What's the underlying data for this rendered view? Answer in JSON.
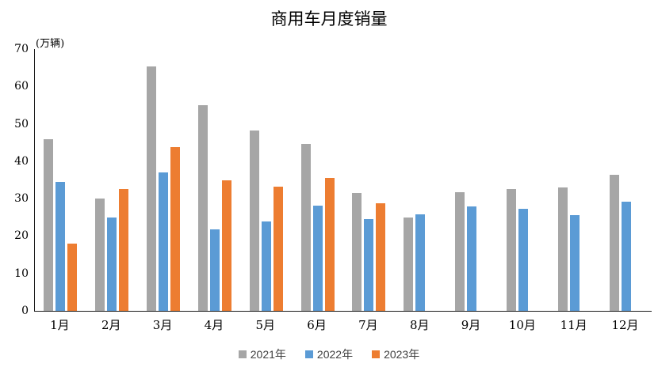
{
  "chart_data": {
    "type": "bar",
    "title": "商用车月度销量",
    "unit_label": "(万辆)",
    "categories": [
      "1月",
      "2月",
      "3月",
      "4月",
      "5月",
      "6月",
      "7月",
      "8月",
      "9月",
      "10月",
      "11月",
      "12月"
    ],
    "series": [
      {
        "name": "2021年",
        "color": "#A6A6A6",
        "values": [
          46,
          30,
          65.3,
          55,
          48.2,
          44.7,
          31.5,
          24.9,
          31.8,
          32.6,
          33,
          36.4
        ]
      },
      {
        "name": "2022年",
        "color": "#5B9BD5",
        "values": [
          34.5,
          25,
          37,
          21.8,
          24,
          28.1,
          24.6,
          25.9,
          28,
          27.3,
          25.5,
          29.2
        ]
      },
      {
        "name": "2023年",
        "color": "#ED7D31",
        "values": [
          18,
          32.5,
          43.7,
          35,
          33.2,
          35.5,
          28.8,
          null,
          null,
          null,
          null,
          null
        ]
      }
    ],
    "ylim": [
      0,
      70
    ],
    "yticks": [
      0,
      10,
      20,
      30,
      40,
      50,
      60,
      70
    ],
    "xlabel": "",
    "ylabel": "",
    "grid": false,
    "legend_position": "bottom",
    "axis_color": "#1a1a1a"
  }
}
